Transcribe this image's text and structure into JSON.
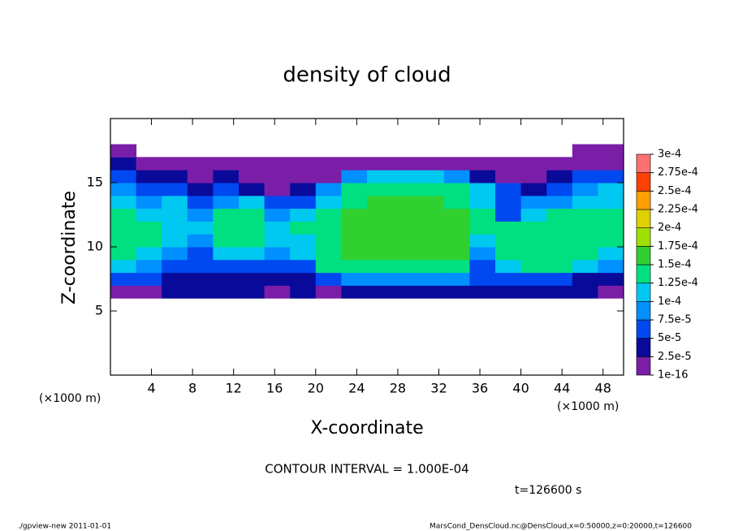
{
  "chart_data": {
    "type": "heatmap",
    "title": "density of cloud",
    "xlabel": "X-coordinate",
    "ylabel": "Z-coordinate",
    "x_unit": "(×1000 m)",
    "y_unit": "(×1000 m)",
    "xlim": [
      0,
      50
    ],
    "ylim": [
      0,
      20
    ],
    "xticks": [
      4,
      8,
      12,
      16,
      20,
      24,
      28,
      32,
      36,
      40,
      44,
      48
    ],
    "yticks": [
      5,
      10,
      15
    ],
    "x": [
      1.25,
      3.75,
      6.25,
      8.75,
      11.25,
      13.75,
      16.25,
      18.75,
      21.25,
      23.75,
      26.25,
      28.75,
      31.25,
      33.75,
      36.25,
      38.75,
      41.25,
      43.75,
      46.25,
      48.75
    ],
    "y": [
      6.5,
      7.5,
      8.5,
      9.5,
      10.5,
      11.5,
      12.5,
      13.5,
      14.5,
      15.5,
      16.5,
      17.5
    ],
    "values": [
      [
        1e-05,
        1e-05,
        3e-05,
        3e-05,
        3e-05,
        3e-05,
        2e-05,
        3e-05,
        2e-05,
        3e-05,
        3e-05,
        3e-05,
        3e-05,
        3e-05,
        3e-05,
        3e-05,
        3e-05,
        3e-05,
        3e-05,
        2e-05
      ],
      [
        6e-05,
        5e-05,
        4e-05,
        3e-05,
        4e-05,
        4e-05,
        3e-05,
        3e-05,
        5e-05,
        8e-05,
        9e-05,
        9e-05,
        9e-05,
        8e-05,
        5e-05,
        6e-05,
        6e-05,
        5e-05,
        4e-05,
        4e-05
      ],
      [
        0.00011,
        9e-05,
        6e-05,
        5e-05,
        7e-05,
        6e-05,
        5e-05,
        6e-05,
        0.00013,
        0.000145,
        0.000145,
        0.000145,
        0.000145,
        0.00014,
        7e-05,
        0.00012,
        0.00013,
        0.00013,
        0.00012,
        9e-05
      ],
      [
        0.000135,
        0.00011,
        8e-05,
        7e-05,
        0.0001,
        0.00011,
        8e-05,
        0.0001,
        0.000145,
        0.00015,
        0.000155,
        0.000155,
        0.000155,
        0.00015,
        9e-05,
        0.000135,
        0.00014,
        0.00014,
        0.000135,
        0.00012
      ],
      [
        0.00014,
        0.00013,
        0.0001,
        9e-05,
        0.00013,
        0.000135,
        0.0001,
        0.00012,
        0.000145,
        0.000155,
        0.00016,
        0.00016,
        0.00016,
        0.000155,
        0.00012,
        0.000135,
        0.00014,
        0.00014,
        0.00014,
        0.000135
      ],
      [
        0.000135,
        0.00013,
        0.00011,
        0.0001,
        0.00014,
        0.00014,
        0.00012,
        0.00013,
        0.000145,
        0.000155,
        0.00016,
        0.00016,
        0.00016,
        0.000155,
        0.00014,
        0.00013,
        0.000135,
        0.00014,
        0.00014,
        0.00014
      ],
      [
        0.00013,
        0.00012,
        0.00011,
        8e-05,
        0.00013,
        0.000135,
        9e-05,
        0.0001,
        0.000135,
        0.00015,
        0.000155,
        0.000155,
        0.000155,
        0.00015,
        0.00013,
        7e-05,
        0.00012,
        0.00013,
        0.00013,
        0.000135
      ],
      [
        0.00011,
        9e-05,
        0.0001,
        6e-05,
        9e-05,
        0.00011,
        6e-05,
        5e-05,
        0.00012,
        0.000145,
        0.00015,
        0.00015,
        0.00015,
        0.000145,
        0.00012,
        6e-05,
        8e-05,
        9e-05,
        0.0001,
        0.00011
      ],
      [
        9e-05,
        7e-05,
        6e-05,
        4e-05,
        5e-05,
        3e-05,
        2e-05,
        4e-05,
        8e-05,
        0.00013,
        0.00014,
        0.00014,
        0.00014,
        0.00013,
        0.0001,
        5e-05,
        3e-05,
        6e-05,
        8e-05,
        0.0001
      ],
      [
        5e-05,
        4e-05,
        3e-05,
        2e-05,
        3e-05,
        2e-05,
        1e-05,
        1e-05,
        2e-05,
        8e-05,
        0.00011,
        0.00012,
        0.00011,
        9e-05,
        4e-05,
        2e-05,
        1e-05,
        3e-05,
        5e-05,
        7e-05
      ],
      [
        4e-05,
        1e-05,
        1e-05,
        1e-05,
        1e-05,
        1e-05,
        1e-05,
        1e-05,
        1e-05,
        1e-05,
        1e-05,
        1e-05,
        1e-05,
        1e-05,
        1e-05,
        1e-05,
        1e-05,
        1e-05,
        1e-05,
        1e-05
      ],
      [
        1e-05,
        null,
        null,
        null,
        null,
        null,
        null,
        null,
        null,
        null,
        null,
        null,
        null,
        null,
        null,
        null,
        null,
        null,
        1e-05,
        1e-05
      ]
    ],
    "colorbar": {
      "ticks": [
        1e-16,
        {
          "value": 2.5e-05,
          "label": "2.5e-5"
        },
        {
          "value": 5e-05,
          "label": "5e-5"
        },
        {
          "value": 7.5e-05,
          "label": "7.5e-5"
        },
        {
          "value": 0.0001,
          "label": "1e-4"
        },
        {
          "value": 0.000125,
          "label": "1.25e-4"
        },
        {
          "value": 0.00015,
          "label": "1.5e-4"
        },
        {
          "value": 0.000175,
          "label": "1.75e-4"
        },
        {
          "value": 0.0002,
          "label": "2e-4"
        },
        {
          "value": 0.000225,
          "label": "2.25e-4"
        },
        {
          "value": 0.00025,
          "label": "2.5e-4"
        },
        {
          "value": 0.000275,
          "label": "2.75e-4"
        },
        {
          "value": 0.0003,
          "label": "3e-4"
        }
      ],
      "colors": [
        "#7a1ea8",
        "#0a0a9a",
        "#0048f0",
        "#0090ff",
        "#00c8f0",
        "#00e080",
        "#30d030",
        "#a0e000",
        "#e0d000",
        "#ffa000",
        "#ff4000",
        "#ff7070"
      ]
    },
    "contour_note": "CONTOUR INTERVAL = 1.000E-04",
    "time_label": "t=126600 s",
    "footer_left": "./gpview-new  2011-01-01",
    "footer_right": "MarsCond_DensCloud.nc@DensCloud,x=0:50000,z=0:20000,t=126600"
  }
}
